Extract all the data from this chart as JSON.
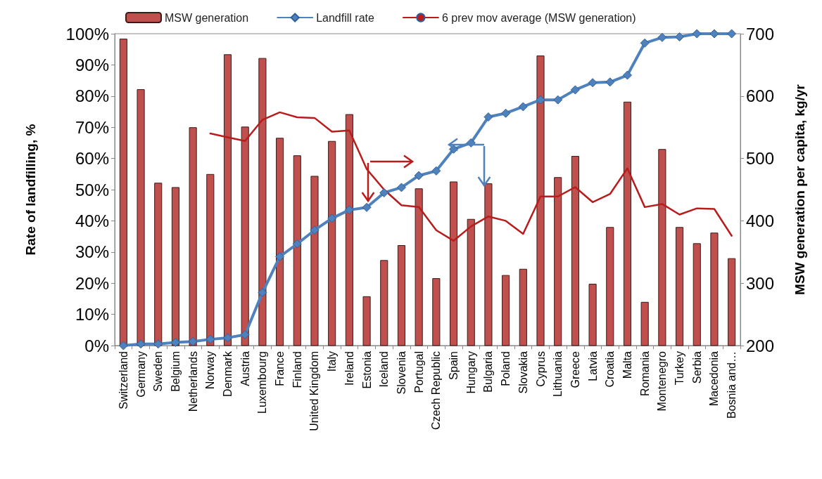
{
  "chart_data": {
    "type": "bar",
    "ylabel": "Rate of landfilling, %",
    "y2label": "MSW generation per capita, kg/yr",
    "categories": [
      "Switzerland",
      "Germany",
      "Sweden",
      "Belgium",
      "Netherlands",
      "Norway",
      "Denmark",
      "Austria",
      "Luxembourg",
      "France",
      "Finland",
      "United Kingdom",
      "Italy",
      "Ireland",
      "Estonia",
      "Iceland",
      "Slovenia",
      "Portugal",
      "Czech Republic",
      "Spain",
      "Hungary",
      "Bulgaria",
      "Poland",
      "Slovakia",
      "Cyprus",
      "Lithuania",
      "Greece",
      "Latvia",
      "Croatia",
      "Malta",
      "Romania",
      "Montenegro",
      "Turkey",
      "Serbia",
      "Macedonia",
      "Bosnia and…"
    ],
    "series": [
      {
        "name": "MSW generation",
        "axis": "y2",
        "color": "#c0504d",
        "values": [
          692,
          611,
          461,
          454,
          550,
          475,
          667,
          551,
          661,
          533,
          505,
          472,
          528,
          571,
          279,
          337,
          361,
          452,
          308,
          463,
          403,
          460,
          313,
          323,
          665,
          470,
          504,
          299,
          390,
          591,
          270,
          515,
          390,
          364,
          381,
          340
        ]
      },
      {
        "name": "Landfill rate",
        "type": "line",
        "color": "#4f81bd",
        "marker": "diamond",
        "values": [
          0,
          0.5,
          0.5,
          1,
          1.3,
          2,
          2.5,
          3.5,
          17,
          28.5,
          32.6,
          37,
          40.8,
          43.5,
          44.3,
          49,
          50.7,
          54.5,
          56,
          63,
          65,
          73.3,
          74.5,
          76.6,
          78.8,
          78.8,
          82,
          84.3,
          84.5,
          86.7,
          97,
          98.8,
          99,
          100,
          100,
          100
        ]
      },
      {
        "name": "6 prev mov average (MSW generation)",
        "type": "line",
        "axis": "y2",
        "color": "#b81c1c",
        "marker": "none",
        "values": [
          null,
          null,
          null,
          null,
          null,
          540,
          534,
          528,
          562,
          574,
          566,
          565,
          543,
          545,
          483,
          450,
          425,
          422,
          385,
          368,
          391,
          407,
          400,
          379,
          439,
          439,
          454,
          430,
          443,
          484,
          422,
          427,
          410,
          420,
          419,
          376
        ]
      }
    ],
    "ylim": [
      0,
      100
    ],
    "yticks": [
      {
        "value": 0,
        "label": "0%"
      },
      {
        "value": 10,
        "label": "10%"
      },
      {
        "value": 20,
        "label": "20%"
      },
      {
        "value": 30,
        "label": "30%"
      },
      {
        "value": 40,
        "label": "40%"
      },
      {
        "value": 50,
        "label": "50%"
      },
      {
        "value": 60,
        "label": "60%"
      },
      {
        "value": 70,
        "label": "70%"
      },
      {
        "value": 80,
        "label": "80%"
      },
      {
        "value": 90,
        "label": "90%"
      },
      {
        "value": 100,
        "label": "100%"
      }
    ],
    "y2lim": [
      200,
      700
    ],
    "y2ticks": [
      200,
      300,
      400,
      500,
      600,
      700
    ],
    "grid": false,
    "legend": "top"
  }
}
